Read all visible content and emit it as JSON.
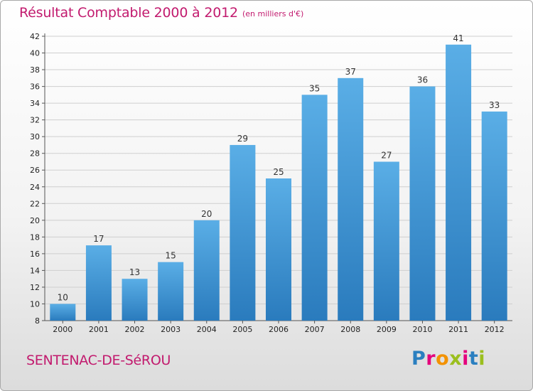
{
  "header": {
    "title": "Résultat Comptable 2000 à 2012",
    "subtitle": "(en milliers d'€)"
  },
  "footer": {
    "commune": "SENTENAC-DE-SéROU",
    "logo_letters": [
      "P",
      "r",
      "o",
      "x",
      "i",
      "t",
      "i"
    ],
    "logo_colors": [
      "#2a7fc0",
      "#e4007c",
      "#f39200",
      "#9bbf1e",
      "#e4007c",
      "#2a7fc0",
      "#9bbf1e"
    ]
  },
  "chart_data": {
    "type": "bar",
    "title": "Résultat Comptable 2000 à 2012",
    "unit": "(en milliers d'€)",
    "categories": [
      "2000",
      "2001",
      "2002",
      "2003",
      "2004",
      "2005",
      "2006",
      "2007",
      "2008",
      "2009",
      "2010",
      "2011",
      "2012"
    ],
    "values": [
      10,
      17,
      13,
      15,
      20,
      29,
      25,
      35,
      37,
      27,
      36,
      41,
      33
    ],
    "ylim": [
      8,
      42
    ],
    "ytick_step": 2,
    "grid": true,
    "bar_color_light": "#5aaee6",
    "bar_color_dark": "#2a7bbd",
    "grid_color": "#cfcfcf"
  }
}
